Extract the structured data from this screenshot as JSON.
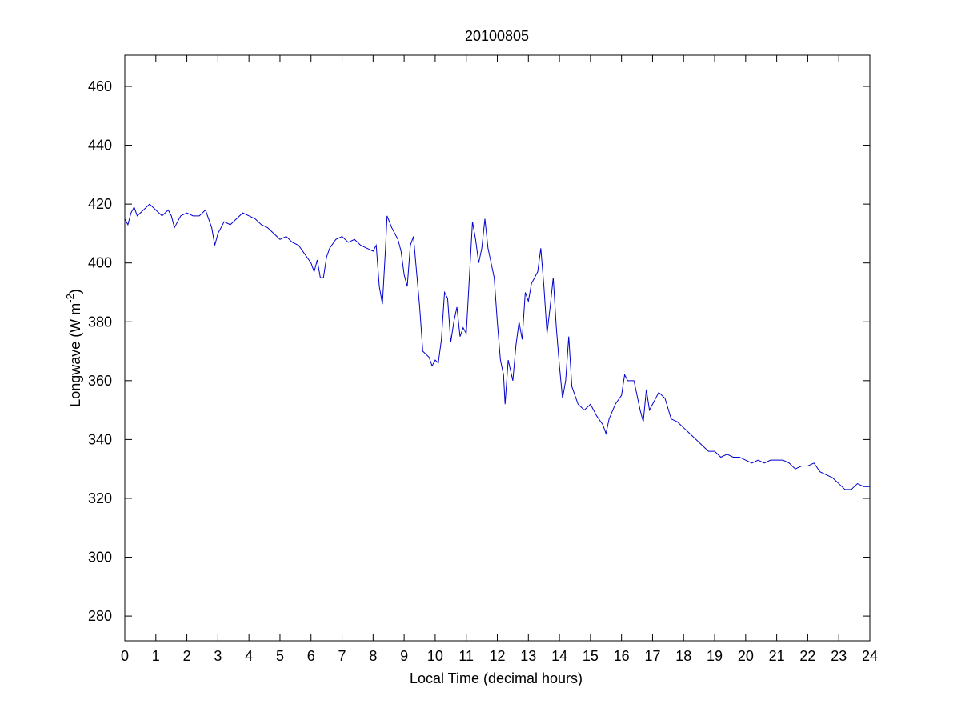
{
  "chart_data": {
    "type": "line",
    "title": "20100805",
    "xlabel": "Local Time (decimal hours)",
    "ylabel": {
      "text": "Longwave (W m",
      "superscript": "-2",
      "suffix": ")"
    },
    "color": "#0000cc",
    "x": [
      0,
      0.1,
      0.2,
      0.3,
      0.4,
      0.6,
      0.8,
      1.0,
      1.2,
      1.4,
      1.5,
      1.6,
      1.8,
      2.0,
      2.2,
      2.4,
      2.6,
      2.8,
      2.9,
      3.0,
      3.2,
      3.4,
      3.6,
      3.8,
      4.0,
      4.2,
      4.4,
      4.6,
      4.8,
      5.0,
      5.2,
      5.4,
      5.6,
      5.8,
      6.0,
      6.1,
      6.2,
      6.3,
      6.4,
      6.5,
      6.6,
      6.8,
      7.0,
      7.2,
      7.4,
      7.6,
      7.8,
      8.0,
      8.1,
      8.2,
      8.3,
      8.4,
      8.45,
      8.6,
      8.8,
      8.9,
      9.0,
      9.1,
      9.2,
      9.3,
      9.35,
      9.5,
      9.6,
      9.8,
      9.9,
      10.0,
      10.1,
      10.2,
      10.3,
      10.4,
      10.5,
      10.6,
      10.7,
      10.8,
      10.9,
      11.0,
      11.1,
      11.2,
      11.3,
      11.4,
      11.5,
      11.6,
      11.7,
      11.8,
      11.9,
      12.0,
      12.1,
      12.2,
      12.25,
      12.35,
      12.5,
      12.6,
      12.7,
      12.8,
      12.9,
      13.0,
      13.1,
      13.2,
      13.3,
      13.4,
      13.5,
      13.6,
      13.7,
      13.8,
      13.9,
      14.0,
      14.1,
      14.2,
      14.3,
      14.4,
      14.6,
      14.8,
      15.0,
      15.2,
      15.4,
      15.5,
      15.6,
      15.8,
      16.0,
      16.1,
      16.2,
      16.4,
      16.6,
      16.7,
      16.8,
      16.9,
      17.0,
      17.2,
      17.4,
      17.6,
      17.8,
      18.0,
      18.2,
      18.4,
      18.6,
      18.8,
      19.0,
      19.2,
      19.4,
      19.6,
      19.8,
      20.0,
      20.2,
      20.4,
      20.6,
      20.8,
      21.0,
      21.2,
      21.4,
      21.6,
      21.8,
      22.0,
      22.2,
      22.4,
      22.6,
      22.8,
      23.0,
      23.2,
      23.4,
      23.6,
      23.8,
      24.0
    ],
    "values": [
      415,
      413,
      417,
      419,
      416,
      418,
      420,
      418,
      416,
      418,
      416,
      412,
      416,
      417,
      416,
      416,
      418,
      412,
      406,
      410,
      414,
      413,
      415,
      417,
      416,
      415,
      413,
      412,
      410,
      408,
      409,
      407,
      406,
      403,
      400,
      397,
      401,
      395,
      395,
      402,
      405,
      408,
      409,
      407,
      408,
      406,
      405,
      404,
      406,
      392,
      386,
      405,
      416,
      412,
      408,
      404,
      396,
      392,
      406,
      409,
      403,
      385,
      370,
      368,
      365,
      367,
      366,
      374,
      390,
      388,
      373,
      380,
      385,
      375,
      378,
      376,
      395,
      414,
      408,
      400,
      405,
      415,
      405,
      400,
      395,
      380,
      367,
      362,
      352,
      367,
      360,
      372,
      380,
      374,
      390,
      387,
      393,
      395,
      397,
      405,
      392,
      376,
      385,
      395,
      378,
      365,
      354,
      360,
      375,
      358,
      352,
      350,
      352,
      348,
      345,
      342,
      347,
      352,
      355,
      362,
      360,
      360,
      350,
      346,
      357,
      350,
      352,
      356,
      354,
      347,
      346,
      344,
      342,
      340,
      338,
      336,
      336,
      334,
      335,
      334,
      334,
      333,
      332,
      333,
      332,
      333,
      333,
      333,
      332,
      330,
      331,
      331,
      332,
      329,
      328,
      327,
      325,
      323,
      323,
      325,
      324,
      324
    ],
    "xlim": [
      0,
      24
    ],
    "xticks": [
      0,
      1,
      2,
      3,
      4,
      5,
      6,
      7,
      8,
      9,
      10,
      11,
      12,
      13,
      14,
      15,
      16,
      17,
      18,
      19,
      20,
      21,
      22,
      23,
      24
    ],
    "ylim": [
      271.6,
      470.6
    ],
    "yticks": [
      280,
      300,
      320,
      340,
      360,
      380,
      400,
      420,
      440,
      460
    ]
  }
}
